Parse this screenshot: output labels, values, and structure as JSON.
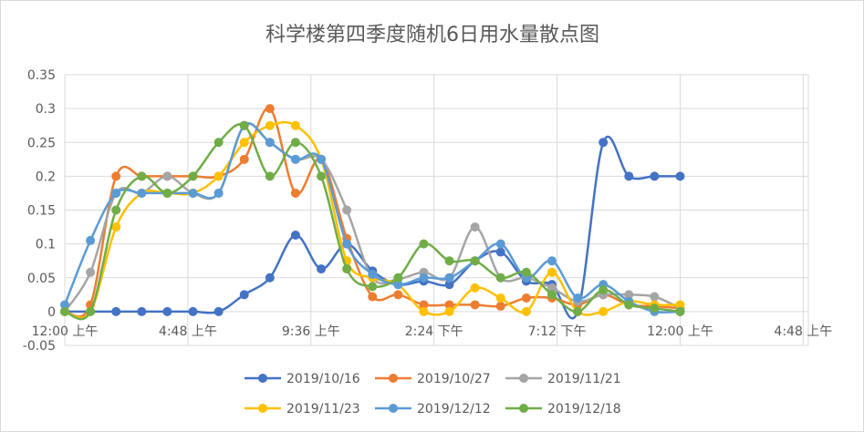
{
  "chart_data": {
    "type": "scatter",
    "title": "科学楼第四季度随机6日用水量散点图",
    "xlabel": "",
    "ylabel": "",
    "x_unit": "hours",
    "xlim": [
      0,
      29
    ],
    "ylim": [
      -0.05,
      0.35
    ],
    "grid": true,
    "legend_position": "bottom",
    "x_ticks": [
      {
        "value": 0,
        "label": "12:00 上午"
      },
      {
        "value": 4.8,
        "label": "4:48 上午"
      },
      {
        "value": 9.6,
        "label": "9:36 上午"
      },
      {
        "value": 14.4,
        "label": "2:24 下午"
      },
      {
        "value": 19.2,
        "label": "7:12 下午"
      },
      {
        "value": 24,
        "label": "12:00 上午"
      },
      {
        "value": 28.8,
        "label": "4:48 上午"
      }
    ],
    "y_ticks": [
      "-0.05",
      "0",
      "0.05",
      "0.1",
      "0.15",
      "0.2",
      "0.25",
      "0.3",
      "0.35"
    ],
    "series": [
      {
        "name": "2019/10/16",
        "color": "#4472c4",
        "x": [
          0,
          1,
          2,
          3,
          4,
          5,
          6,
          7,
          8,
          9,
          10,
          11,
          12,
          13,
          14,
          15,
          16,
          17,
          18,
          19,
          20,
          21,
          22,
          23,
          24
        ],
        "y": [
          0,
          0,
          0,
          0,
          0,
          0,
          0,
          0.025,
          0.05,
          0.113,
          0.063,
          0.1,
          0.06,
          0.04,
          0.045,
          0.04,
          0.075,
          0.088,
          0.045,
          0.04,
          0,
          0.25,
          0.2,
          0.2,
          0.2
        ]
      },
      {
        "name": "2019/10/27",
        "color": "#ed7d31",
        "x": [
          0,
          1,
          2,
          3,
          4,
          5,
          6,
          7,
          8,
          9,
          10,
          11,
          12,
          13,
          14,
          15,
          16,
          17,
          18,
          19,
          20,
          21,
          22,
          23,
          24
        ],
        "y": [
          0,
          0.01,
          0.2,
          0.2,
          0.2,
          0.2,
          0.2,
          0.225,
          0.3,
          0.175,
          0.225,
          0.108,
          0.022,
          0.025,
          0.01,
          0.01,
          0.01,
          0.008,
          0.02,
          0.02,
          0.01,
          0.025,
          0.01,
          0.008,
          0.005
        ]
      },
      {
        "name": "2019/11/21",
        "color": "#a5a5a5",
        "x": [
          0,
          1,
          2,
          3,
          4,
          5,
          6,
          7,
          8,
          9,
          10,
          11,
          12,
          13,
          14,
          15,
          16,
          17,
          18,
          19,
          20,
          21,
          22,
          23,
          24
        ],
        "y": [
          0,
          0.058,
          0.175,
          0.175,
          0.2,
          0.175,
          0.175,
          0.275,
          0.25,
          0.225,
          0.225,
          0.15,
          0.05,
          0.048,
          0.058,
          0.05,
          0.125,
          0.05,
          0.05,
          0.035,
          0.015,
          0.025,
          0.025,
          0.022,
          0.005
        ]
      },
      {
        "name": "2019/11/23",
        "color": "#ffc000",
        "x": [
          0,
          1,
          2,
          3,
          4,
          5,
          6,
          7,
          8,
          9,
          10,
          11,
          12,
          13,
          14,
          15,
          16,
          17,
          18,
          19,
          20,
          21,
          22,
          23,
          24
        ],
        "y": [
          0,
          0,
          0.125,
          0.175,
          0.175,
          0.175,
          0.2,
          0.25,
          0.275,
          0.275,
          0.225,
          0.075,
          0.05,
          0.04,
          0,
          0,
          0.035,
          0.02,
          0,
          0.058,
          0,
          0,
          0.015,
          0.01,
          0.01
        ]
      },
      {
        "name": "2019/12/12",
        "color": "#5b9bd5",
        "x": [
          0,
          1,
          2,
          3,
          4,
          5,
          6,
          7,
          8,
          9,
          10,
          11,
          12,
          13,
          14,
          15,
          16,
          17,
          18,
          19,
          20,
          21,
          22,
          23,
          24
        ],
        "y": [
          0.01,
          0.105,
          0.175,
          0.175,
          0.175,
          0.175,
          0.175,
          0.275,
          0.25,
          0.225,
          0.225,
          0.1,
          0.055,
          0.04,
          0.05,
          0.05,
          0.075,
          0.1,
          0.05,
          0.075,
          0.02,
          0.04,
          0.015,
          0,
          0
        ]
      },
      {
        "name": "2019/12/18",
        "color": "#70ad47",
        "x": [
          0,
          1,
          2,
          3,
          4,
          5,
          6,
          7,
          8,
          9,
          10,
          11,
          12,
          13,
          14,
          15,
          16,
          17,
          18,
          19,
          20,
          21,
          22,
          23,
          24
        ],
        "y": [
          0,
          0,
          0.15,
          0.2,
          0.175,
          0.2,
          0.25,
          0.275,
          0.2,
          0.25,
          0.2,
          0.063,
          0.037,
          0.05,
          0.1,
          0.075,
          0.075,
          0.05,
          0.058,
          0.025,
          0,
          0.032,
          0.01,
          0.005,
          0
        ]
      }
    ]
  }
}
